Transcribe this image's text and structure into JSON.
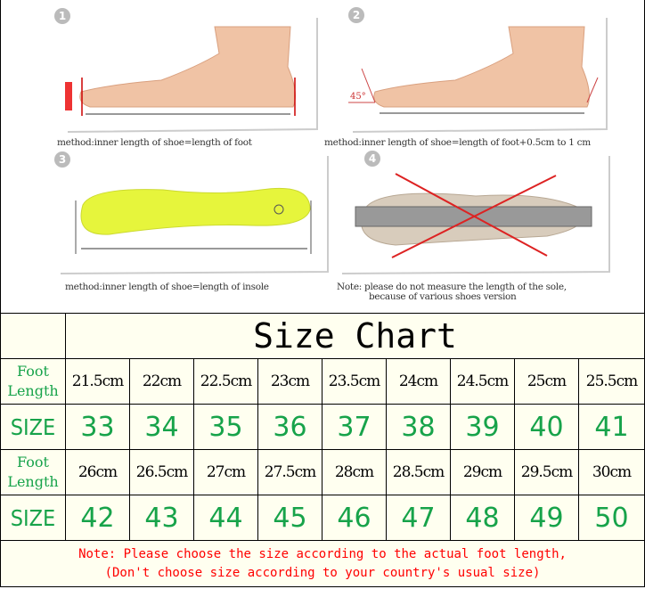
{
  "instructions": {
    "panels": [
      {
        "number": "1",
        "caption": "method:inner length of shoe=length of foot"
      },
      {
        "number": "2",
        "caption": "method:inner length of shoe=length of foot+0.5cm to 1 cm",
        "angle_label": "45°"
      },
      {
        "number": "3",
        "caption": "method:inner length of shoe=length of insole"
      },
      {
        "number": "4",
        "caption": "Note: please do not measure the length of the sole,",
        "caption2": "because of various shoes version"
      }
    ]
  },
  "table": {
    "title": "Size Chart",
    "foot_length_label_1": "Foot",
    "foot_length_label_2": "Length",
    "size_label": "SIZE",
    "rows": [
      {
        "lengths": [
          "21.5cm",
          "22cm",
          "22.5cm",
          "23cm",
          "23.5cm",
          "24cm",
          "24.5cm",
          "25cm",
          "25.5cm"
        ],
        "sizes": [
          "33",
          "34",
          "35",
          "36",
          "37",
          "38",
          "39",
          "40",
          "41"
        ]
      },
      {
        "lengths": [
          "26cm",
          "26.5cm",
          "27cm",
          "27.5cm",
          "28cm",
          "28.5cm",
          "29cm",
          "29.5cm",
          "30cm"
        ],
        "sizes": [
          "42",
          "43",
          "44",
          "45",
          "46",
          "47",
          "48",
          "49",
          "50"
        ]
      }
    ],
    "note_line1": "Note: Please choose the size according to the actual foot length,",
    "note_line2": "(Don't choose size according to your country's usual size)"
  },
  "colors": {
    "green": "#17a34a",
    "note_red": "#ff0000",
    "table_bg": "#fffff0"
  }
}
